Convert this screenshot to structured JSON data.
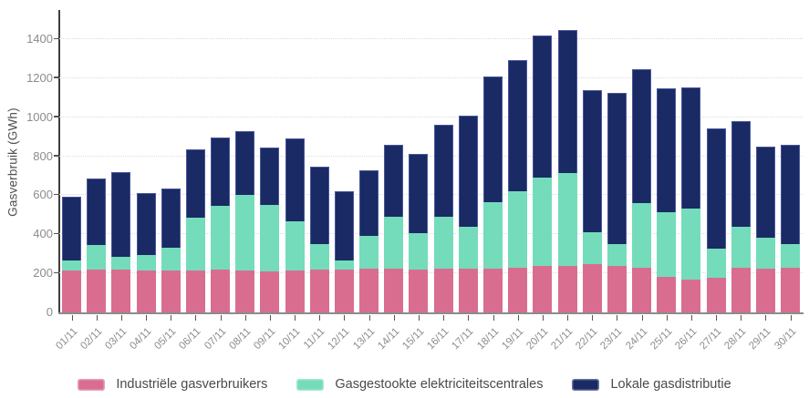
{
  "chart": {
    "y_axis_title": "Gasverbruik (GWh)"
  },
  "chart_data": {
    "type": "bar",
    "stacked": true,
    "title": "",
    "xlabel": "",
    "ylabel": "Gasverbruik (GWh)",
    "ylim": [
      0,
      1540
    ],
    "yticks": [
      0,
      200,
      400,
      600,
      800,
      1000,
      1200,
      1400
    ],
    "grid": true,
    "legend_position": "bottom",
    "categories": [
      "01/11",
      "02/11",
      "03/11",
      "04/11",
      "05/11",
      "06/11",
      "07/11",
      "08/11",
      "09/11",
      "10/11",
      "11/11",
      "12/11",
      "13/11",
      "14/11",
      "15/11",
      "16/11",
      "17/11",
      "18/11",
      "19/11",
      "20/11",
      "21/11",
      "22/11",
      "23/11",
      "24/11",
      "25/11",
      "26/11",
      "27/11",
      "28/11",
      "29/11",
      "30/11"
    ],
    "series": [
      {
        "name": "Industriële gasverbruikers",
        "color": "#d96d90",
        "values": [
          215,
          218,
          220,
          216,
          214,
          216,
          221,
          214,
          210,
          215,
          219,
          219,
          222,
          222,
          220,
          224,
          224,
          226,
          228,
          239,
          239,
          247,
          240,
          227,
          180,
          169,
          177,
          227,
          224,
          228
        ]
      },
      {
        "name": "Gasgestookte elektriciteitscentrales",
        "color": "#74dcba",
        "values": [
          50,
          127,
          65,
          76,
          116,
          269,
          327,
          388,
          340,
          251,
          132,
          48,
          172,
          270,
          187,
          264,
          213,
          340,
          392,
          451,
          474,
          165,
          108,
          334,
          334,
          361,
          148,
          214,
          158,
          123
        ]
      },
      {
        "name": "Lokale gasdistributie",
        "color": "#192a64",
        "values": [
          330,
          340,
          435,
          320,
          307,
          350,
          347,
          326,
          294,
          425,
          398,
          353,
          334,
          366,
          405,
          474,
          569,
          642,
          673,
          730,
          735,
          729,
          777,
          686,
          636,
          622,
          618,
          537,
          468,
          510
        ]
      }
    ]
  }
}
